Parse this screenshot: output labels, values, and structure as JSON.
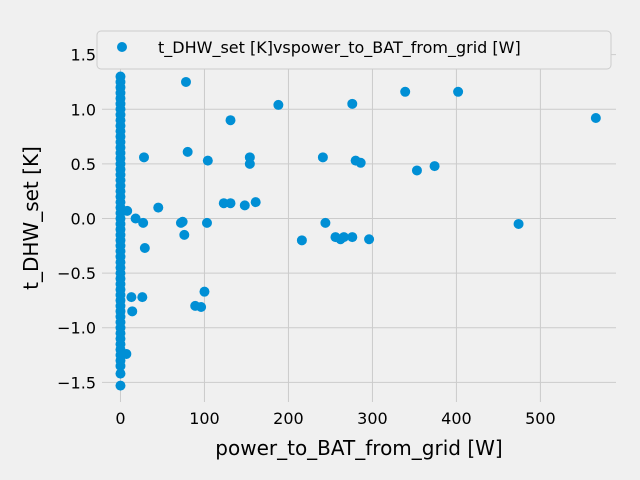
{
  "chart_data": {
    "type": "scatter",
    "xlabel": "power_to_BAT_from_grid [W]",
    "ylabel": "t_DHW_set [K]",
    "xlim": [
      -22,
      590
    ],
    "ylim": [
      -1.68,
      1.68
    ],
    "xticks": [
      0,
      100,
      200,
      300,
      400,
      500
    ],
    "yticks": [
      -1.5,
      -1.0,
      -0.5,
      0.0,
      0.5,
      1.0,
      1.5
    ],
    "ytick_labels": [
      "−1.5",
      "−1.0",
      "−0.5",
      "0.0",
      "0.5",
      "1.0",
      "1.5"
    ],
    "grid": true,
    "legend_position": "top-right",
    "series": [
      {
        "name": "t_DHW_set [K]vspower_to_BAT_from_grid [W]",
        "color": "#008fd5",
        "x": [
          566,
          474,
          402,
          374,
          353,
          339,
          296,
          286,
          280,
          276,
          276,
          266,
          262,
          256,
          244,
          241,
          216,
          188,
          161,
          154,
          154,
          148,
          131,
          131,
          123,
          104,
          103,
          100,
          96,
          89,
          80,
          78,
          76,
          74,
          72,
          45,
          29,
          28,
          27,
          26,
          18,
          14,
          13,
          8,
          7,
          0,
          0,
          0,
          0,
          0,
          0,
          0,
          0,
          0,
          0,
          0,
          0,
          0,
          0,
          0,
          0,
          0,
          0,
          0,
          0,
          0,
          0,
          0,
          0,
          0,
          0,
          0,
          0,
          0,
          0,
          0,
          0,
          0,
          0,
          0,
          0,
          0,
          0,
          0,
          0,
          0,
          0,
          0,
          0,
          0,
          0,
          0,
          0,
          0,
          0,
          0,
          0,
          0,
          0,
          0,
          0,
          0,
          0,
          0
        ],
        "y": [
          0.92,
          -0.05,
          1.16,
          0.48,
          0.44,
          1.16,
          -0.19,
          0.51,
          0.53,
          1.05,
          -0.17,
          -0.17,
          -0.19,
          -0.17,
          -0.04,
          0.56,
          -0.2,
          1.04,
          0.15,
          0.56,
          0.5,
          0.12,
          0.9,
          0.14,
          0.14,
          0.53,
          -0.04,
          -0.67,
          -0.81,
          -0.8,
          0.61,
          1.25,
          -0.15,
          -0.03,
          -0.04,
          0.1,
          -0.27,
          0.56,
          -0.04,
          -0.72,
          0.0,
          -0.85,
          -0.72,
          0.07,
          -1.24,
          1.65,
          1.56,
          1.45,
          1.3,
          1.25,
          1.2,
          1.15,
          1.1,
          1.05,
          1.0,
          0.95,
          0.9,
          0.85,
          0.8,
          0.75,
          0.7,
          0.65,
          0.6,
          0.55,
          0.5,
          0.45,
          0.4,
          0.35,
          0.3,
          0.25,
          0.2,
          0.15,
          0.1,
          0.05,
          0.0,
          -0.05,
          -0.1,
          -0.15,
          -0.2,
          -0.25,
          -0.3,
          -0.35,
          -0.4,
          -0.45,
          -0.5,
          -0.55,
          -0.6,
          -0.65,
          -0.7,
          -0.75,
          -0.8,
          -0.85,
          -0.9,
          -0.95,
          -1.0,
          -1.05,
          -1.1,
          -1.15,
          -1.2,
          -1.25,
          -1.3,
          -1.35,
          -1.42,
          -1.53
        ]
      }
    ]
  }
}
